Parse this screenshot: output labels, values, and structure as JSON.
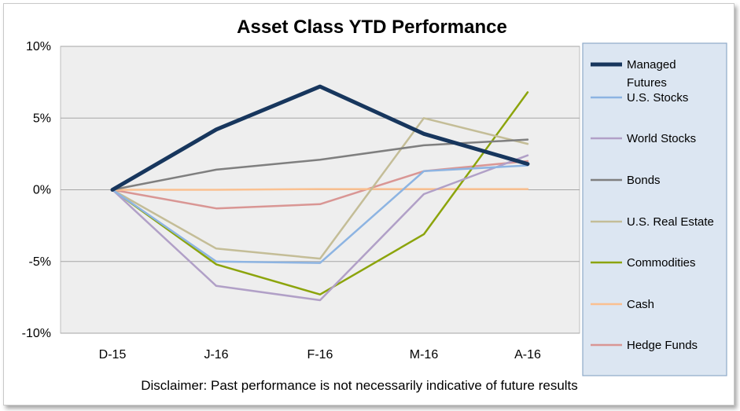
{
  "chart_data": {
    "type": "line",
    "title": "Asset Class YTD Performance",
    "categories": [
      "D-15",
      "J-16",
      "F-16",
      "M-16",
      "A-16"
    ],
    "y_ticks": [
      "10%",
      "5%",
      "0%",
      "-5%",
      "-10%"
    ],
    "ylim": [
      -10,
      10
    ],
    "y_unit": "%",
    "grid": "horizontal",
    "legend_position": "right",
    "series": [
      {
        "name": "Managed Futures",
        "name_lines": [
          "Managed",
          "Futures"
        ],
        "color": "#17365D",
        "width": 5,
        "values": [
          0,
          4.2,
          7.2,
          3.9,
          1.8
        ]
      },
      {
        "name": "U.S. Stocks",
        "color": "#8DB4E2",
        "width": 2.5,
        "values": [
          0,
          -5.0,
          -5.1,
          1.3,
          1.7
        ]
      },
      {
        "name": "World Stocks",
        "color": "#B1A0C7",
        "width": 2.5,
        "values": [
          0,
          -6.7,
          -7.7,
          -0.3,
          2.4
        ]
      },
      {
        "name": "Bonds",
        "color": "#7F7F7F",
        "width": 2.5,
        "values": [
          0,
          1.4,
          2.1,
          3.1,
          3.5
        ]
      },
      {
        "name": "U.S. Real Estate",
        "color": "#C4BD97",
        "width": 2.5,
        "values": [
          0,
          -4.1,
          -4.8,
          5.0,
          3.2
        ]
      },
      {
        "name": "Commodities",
        "color": "#8CA40C",
        "width": 2.5,
        "values": [
          0,
          -5.2,
          -7.3,
          -3.1,
          6.8
        ]
      },
      {
        "name": "Cash",
        "color": "#FAC090",
        "width": 2.5,
        "values": [
          0,
          0.0,
          0.05,
          0.05,
          0.05
        ]
      },
      {
        "name": "Hedge Funds",
        "color": "#D99694",
        "width": 2.5,
        "values": [
          0,
          -1.3,
          -1.0,
          1.3,
          2.0
        ]
      }
    ]
  },
  "disclaimer": "Disclaimer: Past performance is not necessarily indicative of future results",
  "colors": {
    "plot_background": "#EEEEEE",
    "legend_background": "#DCE6F2",
    "gridline": "#A6A6A6"
  }
}
